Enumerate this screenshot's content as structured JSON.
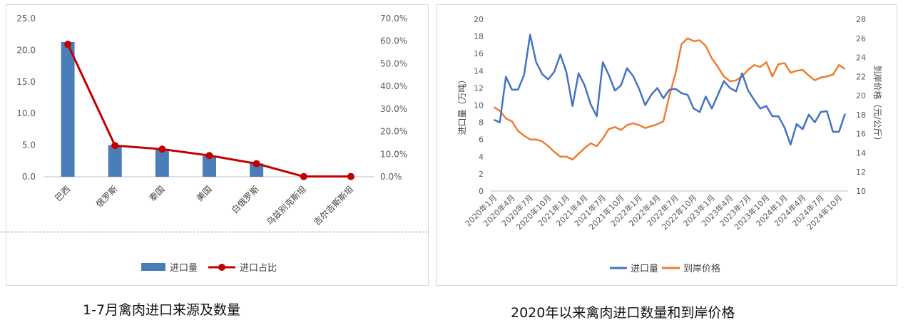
{
  "captions": {
    "left": "1-7月禽肉进口来源及数量",
    "right": "2020年以来禽肉进口数量和到岸价格"
  },
  "chart_data": [
    {
      "type": "bar",
      "title": "1-7月禽肉进口来源及数量",
      "categories": [
        "巴西",
        "俄罗斯",
        "泰国",
        "美国",
        "白俄罗斯",
        "乌兹别克斯坦",
        "吉尔吉斯斯坦"
      ],
      "series": [
        {
          "name": "进口量",
          "type": "bar",
          "axis": "left",
          "color": "#4a7ebb",
          "values": [
            21.3,
            5.0,
            4.4,
            3.3,
            2.1,
            0.0,
            0.0
          ]
        },
        {
          "name": "进口占比",
          "type": "line",
          "axis": "right",
          "color": "#c00000",
          "values": [
            58.6,
            13.8,
            12.2,
            9.4,
            5.8,
            0.1,
            0.1
          ]
        }
      ],
      "y_left": {
        "ylim": [
          0,
          25
        ],
        "ticks": [
          "0.0",
          "5.0",
          "10.0",
          "15.0",
          "20.0",
          "25.0"
        ]
      },
      "y_right": {
        "ylim": [
          0,
          70
        ],
        "ticks": [
          "0.0%",
          "10.0%",
          "20.0%",
          "30.0%",
          "40.0%",
          "50.0%",
          "60.0%",
          "70.0%"
        ]
      },
      "legend": {
        "position": "bottom",
        "items": [
          "进口量",
          "进口占比"
        ]
      },
      "grid": false
    },
    {
      "type": "line",
      "title": "2020年以来禽肉进口数量和到岸价格",
      "x": [
        "2020-01",
        "2020-02",
        "2020-03",
        "2020-04",
        "2020-05",
        "2020-06",
        "2020-07",
        "2020-08",
        "2020-09",
        "2020-10",
        "2020-11",
        "2020-12",
        "2021-01",
        "2021-02",
        "2021-03",
        "2021-04",
        "2021-05",
        "2021-06",
        "2021-07",
        "2021-08",
        "2021-09",
        "2021-10",
        "2021-11",
        "2021-12",
        "2022-01",
        "2022-02",
        "2022-03",
        "2022-04",
        "2022-05",
        "2022-06",
        "2022-07",
        "2022-08",
        "2022-09",
        "2022-10",
        "2022-11",
        "2022-12",
        "2023-01",
        "2023-02",
        "2023-03",
        "2023-04",
        "2023-05",
        "2023-06",
        "2023-07",
        "2023-08",
        "2023-09",
        "2023-10",
        "2023-11",
        "2023-12",
        "2024-01",
        "2024-02",
        "2024-03",
        "2024-04",
        "2024-05",
        "2024-06",
        "2024-07",
        "2024-08",
        "2024-09",
        "2024-10",
        "2024-11"
      ],
      "x_tick_labels": [
        "2020年1月",
        "2020年4月",
        "2020年7月",
        "2020年10月",
        "2021年1月",
        "2021年4月",
        "2021年7月",
        "2021年10月",
        "2022年1月",
        "2022年4月",
        "2022年7月",
        "2022年10月",
        "2023年1月",
        "2023年4月",
        "2023年7月",
        "2023年10月",
        "2024年1月",
        "2024年4月",
        "2024年7月",
        "2024年10月"
      ],
      "series": [
        {
          "name": "进口量",
          "axis": "left",
          "color": "#4472c4",
          "values": [
            8.3,
            8.0,
            13.3,
            11.8,
            11.8,
            13.5,
            18.2,
            15.0,
            13.6,
            13.0,
            13.9,
            15.9,
            13.8,
            9.9,
            13.7,
            12.3,
            10.1,
            8.7,
            15.0,
            13.5,
            11.7,
            12.3,
            14.3,
            13.4,
            11.9,
            10.0,
            11.2,
            12.0,
            10.8,
            11.8,
            11.9,
            11.4,
            11.2,
            9.6,
            9.2,
            11.0,
            9.6,
            11.2,
            12.8,
            12.0,
            11.6,
            13.7,
            11.7,
            10.6,
            9.6,
            9.9,
            8.7,
            8.7,
            7.4,
            5.4,
            7.8,
            7.2,
            8.9,
            8.0,
            9.2,
            9.3,
            6.9,
            6.9,
            9.0
          ]
        },
        {
          "name": "到岸价格",
          "axis": "right",
          "color": "#ed7d31",
          "values": [
            18.8,
            18.4,
            17.6,
            17.3,
            16.3,
            15.8,
            15.4,
            15.4,
            15.2,
            14.7,
            14.1,
            13.6,
            13.6,
            13.3,
            13.9,
            14.5,
            15.0,
            14.7,
            15.5,
            16.5,
            16.7,
            16.4,
            16.9,
            17.1,
            16.9,
            16.6,
            16.8,
            17.0,
            17.3,
            20.0,
            22.3,
            25.4,
            26.0,
            25.7,
            25.8,
            25.2,
            23.9,
            23.0,
            22.0,
            21.5,
            21.6,
            22.0,
            22.7,
            23.2,
            23.0,
            23.5,
            22.0,
            23.3,
            23.4,
            22.4,
            22.6,
            22.7,
            22.1,
            21.6,
            21.9,
            22.0,
            22.2,
            23.2,
            22.8
          ]
        }
      ],
      "y_left": {
        "label": "进口量（万吨）",
        "ylim": [
          0,
          20
        ],
        "ticks": [
          "0",
          "2",
          "4",
          "6",
          "8",
          "10",
          "12",
          "14",
          "16",
          "18",
          "20"
        ]
      },
      "y_right": {
        "label": "到岸价格（元/公斤）",
        "ylim": [
          10,
          28
        ],
        "ticks": [
          "10",
          "12",
          "14",
          "16",
          "18",
          "20",
          "22",
          "24",
          "26",
          "28"
        ]
      },
      "legend": {
        "position": "bottom",
        "items": [
          "进口量",
          "到岸价格"
        ]
      },
      "grid": false
    }
  ]
}
